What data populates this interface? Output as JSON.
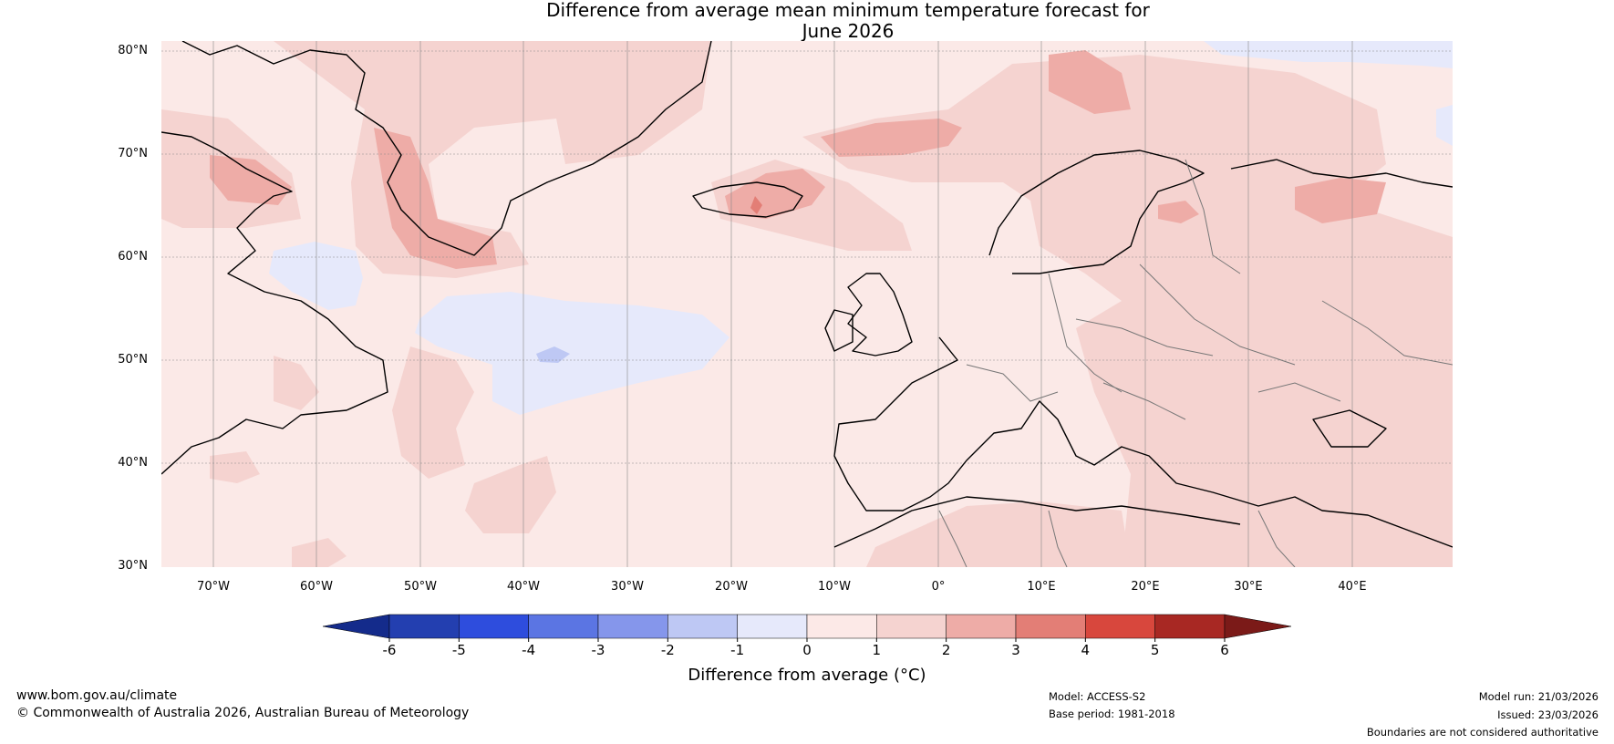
{
  "title": {
    "line1": "Difference from average mean minimum temperature forecast for",
    "line2": "June 2026"
  },
  "map": {
    "region": "North Atlantic and Europe",
    "lat_labels": [
      "80°N",
      "70°N",
      "60°N",
      "50°N",
      "40°N",
      "30°N"
    ],
    "lon_labels": [
      "70°W",
      "60°W",
      "50°W",
      "40°W",
      "30°W",
      "20°W",
      "10°W",
      "0°",
      "10°E",
      "20°E",
      "30°E",
      "40°E"
    ],
    "background_color": "#fbe9e7"
  },
  "colorbar": {
    "ticks": [
      "-6",
      "-5",
      "-4",
      "-3",
      "-2",
      "-1",
      "0",
      "1",
      "2",
      "3",
      "4",
      "5",
      "6"
    ],
    "colors": [
      "#233fb0",
      "#2e4ddd",
      "#5b75e3",
      "#8596eb",
      "#bec8f4",
      "#e6e9fb",
      "#fce9e7",
      "#f5d3d0",
      "#eeaca7",
      "#e37e76",
      "#d8473d",
      "#a82823"
    ],
    "under_color": "#142b8b",
    "over_color": "#7b1a18",
    "label": "Difference from average (°C)"
  },
  "footer": {
    "website": "www.bom.gov.au/climate",
    "copyright": "© Commonwealth of Australia 2026, Australian Bureau of Meteorology",
    "model": "Model: ACCESS-S2",
    "base_period": "Base period: 1981-2018",
    "model_run": "Model run: 21/03/2026",
    "issued": "Issued: 23/03/2026",
    "disclaimer": "Boundaries are not considered authoritative"
  }
}
